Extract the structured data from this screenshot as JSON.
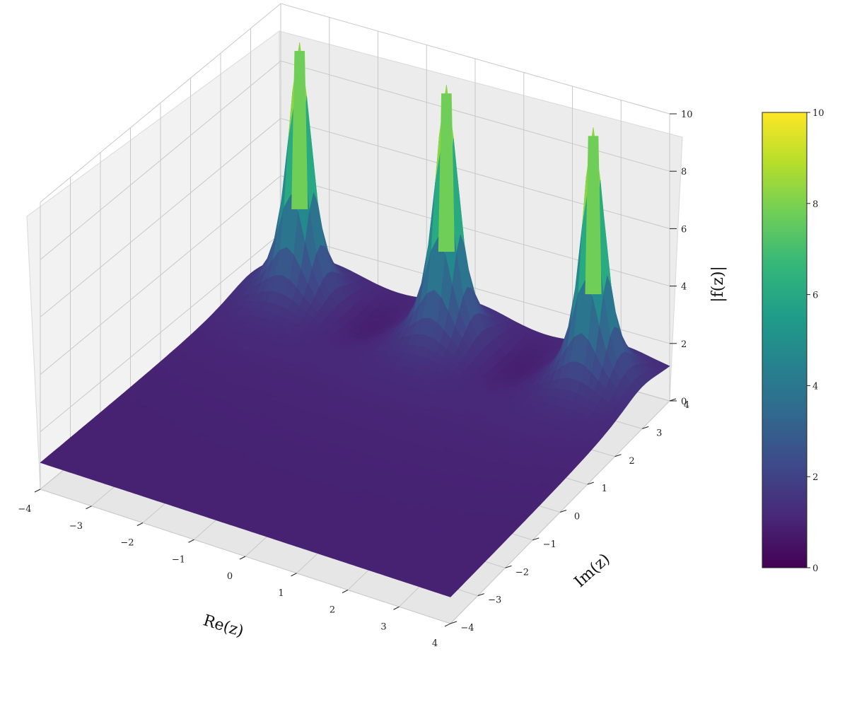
{
  "chart_data": {
    "type": "surface3d",
    "title": "",
    "xlabel": "Re(z)",
    "ylabel": "Im(z)",
    "zlabel": "|f(z)|",
    "xlim": [
      -4,
      4
    ],
    "ylim": [
      -4,
      4
    ],
    "zlim": [
      0,
      10
    ],
    "grid": true,
    "colormap": "viridis",
    "x_ticks": [
      "−4",
      "−3",
      "−2",
      "−1",
      "0",
      "1",
      "2",
      "3",
      "4"
    ],
    "y_ticks": [
      "−4",
      "−3",
      "−2",
      "−1",
      "0",
      "1",
      "2",
      "3",
      "4"
    ],
    "z_ticks": [
      "0",
      "2",
      "4",
      "6",
      "8",
      "10"
    ],
    "peaks": [
      {
        "re": -3,
        "im": 3,
        "height": 10
      },
      {
        "re": 0,
        "im": 3,
        "height": 10
      },
      {
        "re": 3,
        "im": 3,
        "height": 10
      }
    ],
    "colorbar": {
      "range": [
        0,
        10
      ],
      "ticks": [
        "0",
        "2",
        "4",
        "6",
        "8",
        "10"
      ],
      "colors": [
        "#440154",
        "#482878",
        "#3e4989",
        "#31688e",
        "#26828e",
        "#1f9e89",
        "#35b779",
        "#6ece58",
        "#b5de2b",
        "#fde725"
      ]
    }
  }
}
